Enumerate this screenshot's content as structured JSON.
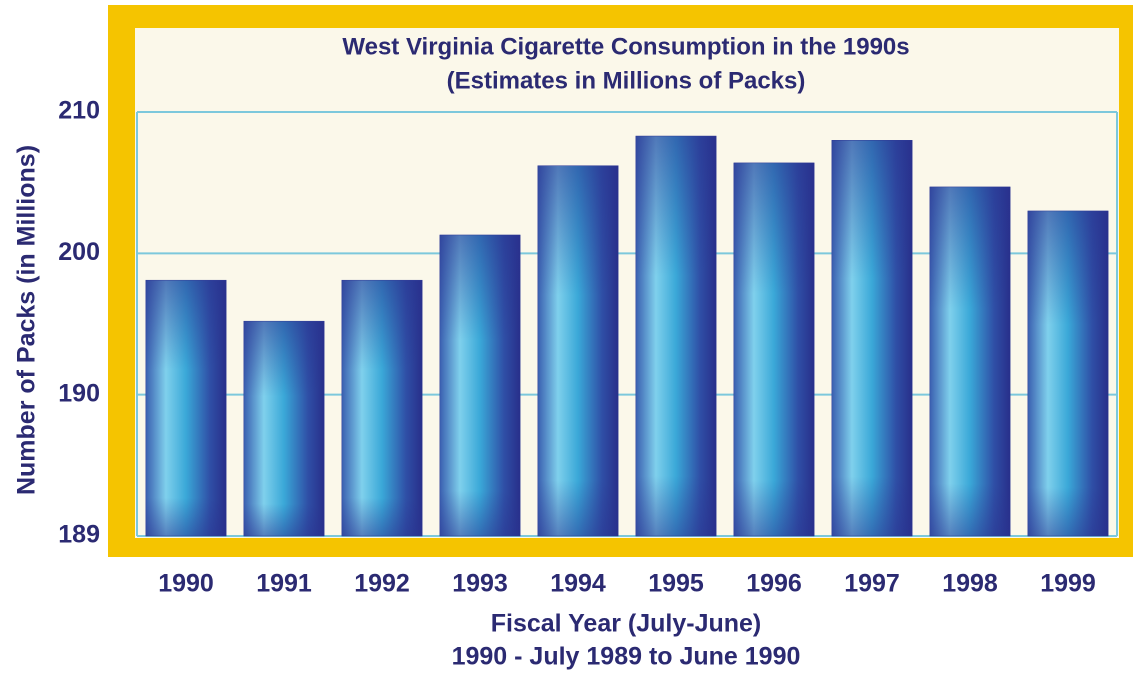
{
  "chart_data": {
    "type": "bar",
    "title": "West Virginia Cigarette Consumption in the 1990s",
    "subtitle": "(Estimates in Millions of Packs)",
    "y_label": "Number of Packs (in Millions)",
    "x_label": "Fiscal Year (July-June)",
    "note": "1990 - July 1989 to June 1990",
    "categories": [
      "1990",
      "1991",
      "1992",
      "1993",
      "1994",
      "1995",
      "1996",
      "1997",
      "1998",
      "1999"
    ],
    "values": [
      198.1,
      195.2,
      198.1,
      201.3,
      206.2,
      208.3,
      206.4,
      208.0,
      204.7,
      203.0
    ],
    "color": "#2f3a96",
    "ylim": [
      189,
      210
    ],
    "yticks": [
      189,
      190,
      200,
      210
    ],
    "grid": true
  }
}
